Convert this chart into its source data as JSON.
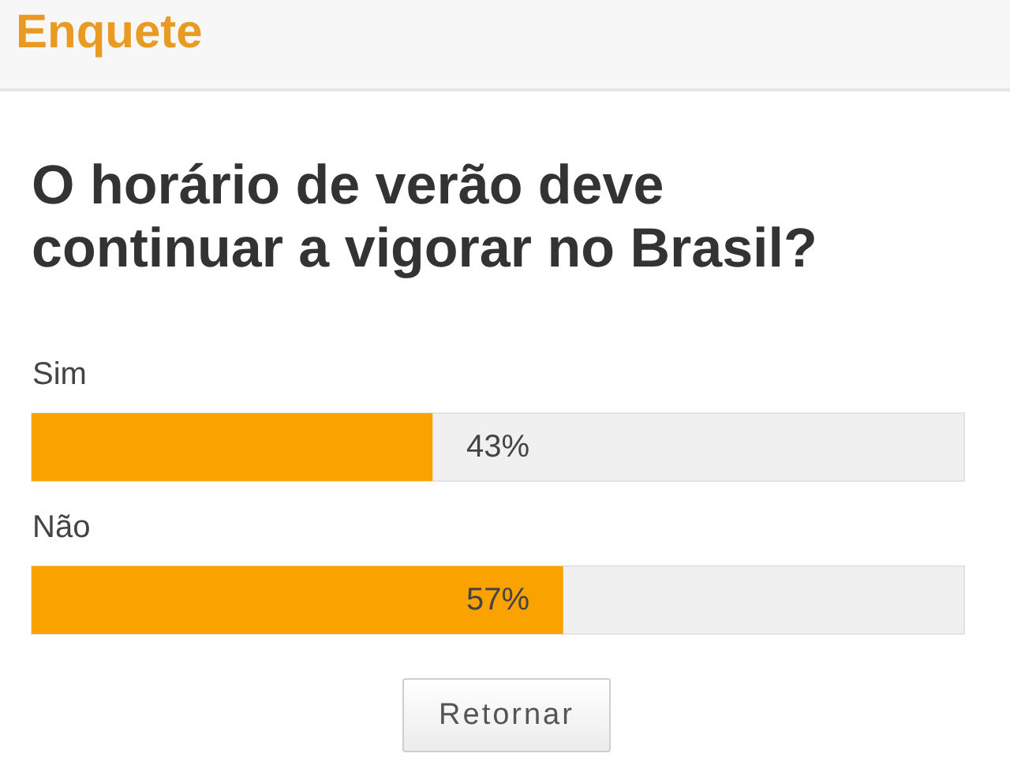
{
  "chart_data": {
    "type": "bar",
    "title": "Enquete",
    "subtitle": "O horário de verão deve continuar a vigorar no Brasil?",
    "categories": [
      "Sim",
      "Não"
    ],
    "values": [
      43,
      57
    ],
    "color": "#f9a200",
    "orientation": "horizontal",
    "xlim": [
      0,
      100
    ],
    "value_labels": [
      "43%",
      "57%"
    ],
    "tick_labels": "y",
    "annotations": [
      "Retornar"
    ]
  }
}
